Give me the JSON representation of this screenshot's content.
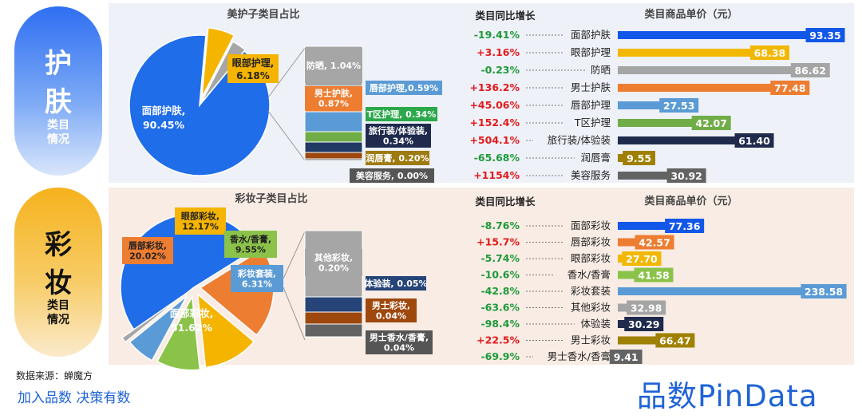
{
  "sections": [
    {
      "id": "skin",
      "side": {
        "line1": "护",
        "line2": "肤",
        "sub1": "类目",
        "sub2": "情况"
      },
      "pie_title": "美护子类目占比",
      "growth_header": "类目同比增长",
      "price_header": "类目商品单价（元）",
      "pie_labels": {
        "main": {
          "name": "面部护肤,",
          "value": "90.45%"
        },
        "second": {
          "name": "眼部护理,",
          "value": "6.18%"
        }
      },
      "breakdown_labels": [
        {
          "text": "防晒, 1.04%"
        },
        {
          "text": "男士护肤,",
          "text2": "0.87%"
        },
        {
          "text": "唇部护理,0.59%"
        },
        {
          "text": "T区护理, 0.34%"
        },
        {
          "text": "旅行装/体验装,",
          "text2": "0.34%"
        },
        {
          "text": "润唇膏, 0.20%"
        },
        {
          "text": "美容服务, 0.00%"
        }
      ]
    },
    {
      "id": "makeup",
      "side": {
        "line1": "彩",
        "line2": "妆",
        "sub1": "类目",
        "sub2": "情况"
      },
      "pie_title": "彩妆子类目占比",
      "growth_header": "类目同比增长",
      "price_header": "类目商品单价（元）",
      "pie_labels": {
        "main": {
          "name": "面部彩妆,",
          "value": "51.62%"
        },
        "lip": {
          "name": "唇部彩妆,",
          "value": "20.02%"
        },
        "eye": {
          "name": "眼部彩妆,",
          "value": "12.17%"
        },
        "perfume": {
          "name": "香水/香膏,",
          "value": "9.55%"
        },
        "set": {
          "name": "彩妆套装,",
          "value": "6.31%"
        }
      },
      "breakdown_labels": [
        {
          "text": "其他彩妆,",
          "text2": "0.20%"
        },
        {
          "text": "体验装, 0.05%"
        },
        {
          "text": "男士彩妆,",
          "text2": "0.04%"
        },
        {
          "text": "男士香水/香膏,",
          "text2": "0.04%"
        }
      ]
    }
  ],
  "chart_data": [
    {
      "type": "pie",
      "title": "美护子类目占比",
      "categories": [
        "面部护肤",
        "眼部护理",
        "防晒",
        "男士护肤",
        "唇部护理",
        "T区护理",
        "旅行装/体验装",
        "润唇膏",
        "美容服务"
      ],
      "values": [
        90.45,
        6.18,
        1.04,
        0.87,
        0.59,
        0.34,
        0.34,
        0.2,
        0.0
      ],
      "colors": [
        "#1f6de9",
        "#f5b400",
        "#a6a6a6",
        "#ed7d31",
        "#5b9bd5",
        "#70ad47",
        "#203864",
        "#9e480e",
        "#636363"
      ]
    },
    {
      "type": "bar",
      "orientation": "horizontal",
      "title": "类目商品单价（元）",
      "categories": [
        "面部护肤",
        "眼部护理",
        "防晒",
        "男士护肤",
        "唇部护理",
        "T区护理",
        "旅行装/体验装",
        "润唇膏",
        "美容服务"
      ],
      "values": [
        93.35,
        68.38,
        86.62,
        77.48,
        27.53,
        42.07,
        61.4,
        9.55,
        30.92
      ],
      "value_labels": [
        "93.35",
        "68.38",
        "86.62",
        "77.48",
        "27.53",
        "42.07",
        "61.40",
        "9.55",
        "30.92"
      ],
      "growth_title": "类目同比增长",
      "growth": [
        "-19.41%",
        "+3.16%",
        "-0.23%",
        "+136.2%",
        "+45.06%",
        "+152.4%",
        "+504.1%",
        "-65.68%",
        "+1154%"
      ],
      "colors": [
        "#1357e8",
        "#f2b700",
        "#a5a5a5",
        "#ed7d31",
        "#5b9bd5",
        "#70ad47",
        "#1f2a4d",
        "#a08000",
        "#636363"
      ],
      "positive_color": "#e31a1c",
      "negative_color": "#1e9a3a"
    },
    {
      "type": "pie",
      "title": "彩妆子类目占比",
      "categories": [
        "面部彩妆",
        "唇部彩妆",
        "眼部彩妆",
        "香水/香膏",
        "彩妆套装",
        "其他彩妆",
        "体验装",
        "男士彩妆",
        "男士香水/香膏"
      ],
      "values": [
        51.62,
        20.02,
        12.17,
        9.55,
        6.31,
        0.2,
        0.05,
        0.04,
        0.04
      ],
      "colors": [
        "#1f6de9",
        "#ed7d31",
        "#f5b400",
        "#8bc34a",
        "#5b9bd5",
        "#a6a6a6",
        "#264478",
        "#9e480e",
        "#636363"
      ]
    },
    {
      "type": "bar",
      "orientation": "horizontal",
      "title": "类目商品单价（元）",
      "categories": [
        "面部彩妆",
        "唇部彩妆",
        "眼部彩妆",
        "香水/香膏",
        "彩妆套装",
        "其他彩妆",
        "体验装",
        "男士彩妆",
        "男士香水/香膏"
      ],
      "values": [
        77.36,
        42.57,
        27.7,
        41.58,
        238.58,
        32.98,
        30.29,
        66.47,
        9.41
      ],
      "value_labels": [
        "77.36",
        "42.57",
        "27.70",
        "41.58",
        "238.58",
        "32.98",
        "30.29",
        "66.47",
        "9.41"
      ],
      "growth_title": "类目同比增长",
      "growth": [
        "-8.76%",
        "+15.7%",
        "-5.74%",
        "-10.6%",
        "-42.8%",
        "-63.6%",
        "-98.4%",
        "+22.5%",
        "-69.9%"
      ],
      "colors": [
        "#1357e8",
        "#ed7d31",
        "#f2b700",
        "#8bc34a",
        "#5b9bd5",
        "#a5a5a5",
        "#1f2a4d",
        "#a08000",
        "#636363"
      ],
      "positive_color": "#e31a1c",
      "negative_color": "#1e9a3a"
    }
  ],
  "footer": {
    "source": "数据来源：蝉魔方",
    "slogan": "加入品数 决策有数",
    "logo": "品数PinData"
  }
}
